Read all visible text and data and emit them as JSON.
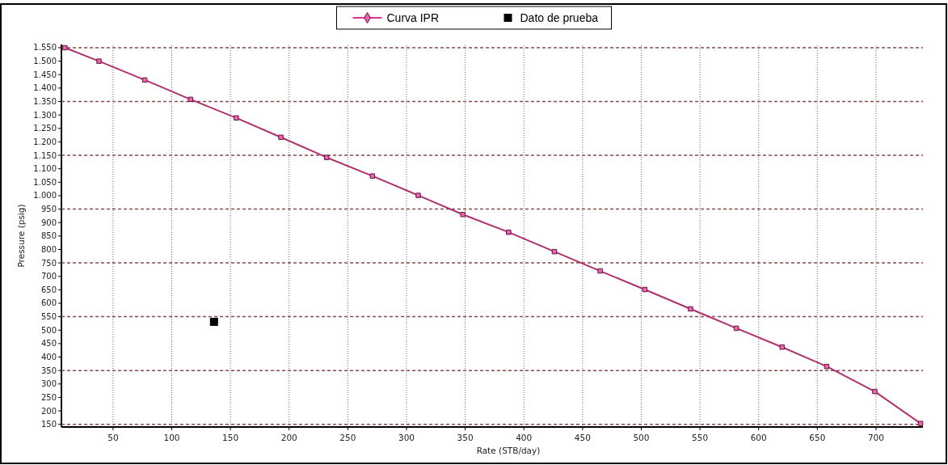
{
  "chart_data": {
    "type": "line",
    "xlabel": "Rate  (STB/day)",
    "ylabel": "Pressure  (psig)",
    "xlim": [
      6,
      740
    ],
    "ylim": [
      140,
      1562
    ],
    "xticks": [
      50,
      100,
      150,
      200,
      250,
      300,
      350,
      400,
      450,
      500,
      550,
      600,
      650,
      700
    ],
    "yticks": [
      150,
      200,
      250,
      300,
      350,
      400,
      450,
      500,
      550,
      600,
      650,
      700,
      750,
      800,
      850,
      900,
      950,
      {
        "value": 1000,
        "label": "1.000"
      },
      {
        "value": 1050,
        "label": "1.050"
      },
      {
        "value": 1100,
        "label": "1.100"
      },
      {
        "value": 1150,
        "label": "1.150"
      },
      {
        "value": 1200,
        "label": "1.200"
      },
      {
        "value": 1250,
        "label": "1.250"
      },
      {
        "value": 1300,
        "label": "1.300"
      },
      {
        "value": 1350,
        "label": "1.350"
      },
      {
        "value": 1400,
        "label": "1.400"
      },
      {
        "value": 1450,
        "label": "1.450"
      },
      {
        "value": 1500,
        "label": "1.500"
      },
      {
        "value": 1550,
        "label": "1.550"
      }
    ],
    "grid": "x",
    "legend": "top",
    "marker": "square",
    "line_style": "solid",
    "ref_lines": [
      {
        "axis": "y",
        "value": 150,
        "color": "#8b4a4a",
        "line_style": "dashed"
      },
      {
        "axis": "y",
        "value": 350,
        "color": "#8b4a4a",
        "line_style": "dashed"
      },
      {
        "axis": "y",
        "value": 550,
        "color": "#8b4a4a",
        "line_style": "dashed"
      },
      {
        "axis": "y",
        "value": 750,
        "color": "#8b4a4a",
        "line_style": "dashed"
      },
      {
        "axis": "y",
        "value": 950,
        "color": "#8b4a4a",
        "line_style": "dashed"
      },
      {
        "axis": "y",
        "value": 1150,
        "color": "#8b4a4a",
        "line_style": "dashed"
      },
      {
        "axis": "y",
        "value": 1350,
        "color": "#8b4a4a",
        "line_style": "dashed"
      },
      {
        "axis": "y",
        "value": 1550,
        "color": "#8b4a4a",
        "line_style": "dashed"
      }
    ],
    "series": [
      {
        "name": "Curva IPR",
        "color": "#b0306e",
        "x": [
          9,
          38,
          77,
          116,
          155,
          193,
          232,
          271,
          310,
          348,
          387,
          426,
          465,
          503,
          542,
          581,
          620,
          658,
          699,
          738
        ],
        "values": [
          1550,
          1500,
          1430,
          1358,
          1289,
          1217,
          1142,
          1073,
          1001,
          930,
          864,
          792,
          720,
          651,
          579,
          507,
          437,
          365,
          272,
          153
        ]
      },
      {
        "name": "Dato de prueba",
        "type": "scatter",
        "color": "#000000",
        "x": [
          136
        ],
        "values": [
          531
        ]
      }
    ]
  }
}
